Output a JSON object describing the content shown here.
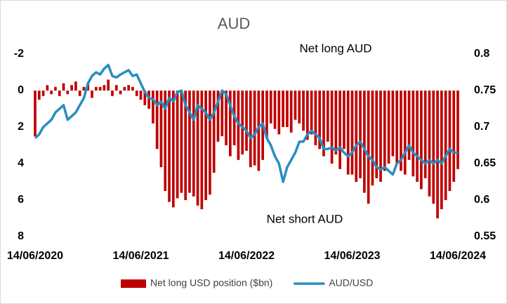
{
  "chart_data": {
    "type": "bar-line",
    "title": "AUD",
    "annotations": [
      "Net long AUD",
      "Net short AUD"
    ],
    "categories": [
      "14/06/2020",
      null,
      null,
      null,
      null,
      null,
      null,
      null,
      null,
      null,
      null,
      null,
      null,
      null,
      null,
      null,
      null,
      null,
      null,
      null,
      null,
      null,
      null,
      null,
      null,
      null,
      "14/06/2021",
      null,
      null,
      null,
      null,
      null,
      null,
      null,
      null,
      null,
      null,
      null,
      null,
      null,
      null,
      null,
      null,
      null,
      null,
      null,
      null,
      null,
      null,
      null,
      null,
      null,
      "14/06/2022",
      null,
      null,
      null,
      null,
      null,
      null,
      null,
      null,
      null,
      null,
      null,
      null,
      null,
      null,
      null,
      null,
      null,
      null,
      null,
      null,
      null,
      null,
      null,
      null,
      null,
      "14/06/2023",
      null,
      null,
      null,
      null,
      null,
      null,
      null,
      null,
      null,
      null,
      null,
      null,
      null,
      null,
      null,
      null,
      null,
      null,
      null,
      null,
      null,
      null,
      null,
      null,
      null,
      "14/06/2024"
    ],
    "series": [
      {
        "name": "Net long USD position ($bn)",
        "type": "bar",
        "color": "#c00000",
        "axis": "y",
        "values": [
          2.5,
          0.5,
          0.3,
          -0.3,
          0.2,
          -0.2,
          0.3,
          -0.4,
          0.2,
          -0.3,
          -0.5,
          0.3,
          -0.2,
          -0.4,
          0.4,
          -0.2,
          -0.2,
          -0.3,
          -0.6,
          0.3,
          -0.3,
          0.2,
          -0.2,
          -0.3,
          -0.2,
          0.3,
          0.5,
          0.8,
          1.0,
          1.8,
          3.2,
          4.2,
          5.5,
          6.1,
          6.4,
          5.9,
          5.6,
          6.0,
          5.6,
          5.8,
          6.3,
          6.5,
          6.0,
          5.7,
          4.5,
          2.8,
          2.5,
          3.0,
          3.6,
          3.0,
          3.8,
          3.5,
          3.3,
          4.2,
          4.1,
          4.4,
          3.8,
          2.6,
          1.8,
          2.1,
          2.4,
          2.0,
          2.0,
          2.3,
          1.6,
          1.8,
          2.2,
          2.7,
          2.4,
          3.0,
          3.2,
          3.6,
          2.8,
          4.0,
          3.5,
          4.3,
          3.2,
          4.6,
          4.6,
          5.0,
          4.8,
          5.6,
          6.2,
          5.2,
          4.8,
          5.0,
          4.4,
          4.0,
          3.6,
          4.0,
          4.4,
          4.6,
          3.8,
          4.7,
          5.0,
          5.4,
          4.8,
          5.8,
          6.2,
          7.0,
          6.5,
          6.0,
          5.5,
          5.0,
          4.3
        ]
      },
      {
        "name": "AUD/USD",
        "type": "line",
        "color": "#2a8dc0",
        "axis": "y2",
        "values": [
          0.685,
          0.69,
          0.7,
          0.705,
          0.71,
          0.72,
          0.725,
          0.73,
          0.71,
          0.715,
          0.72,
          0.73,
          0.74,
          0.76,
          0.77,
          0.775,
          0.772,
          0.78,
          0.785,
          0.77,
          0.768,
          0.772,
          0.775,
          0.778,
          0.77,
          0.772,
          0.76,
          0.748,
          0.74,
          0.738,
          0.73,
          0.735,
          0.725,
          0.74,
          0.735,
          0.748,
          0.75,
          0.73,
          0.72,
          0.71,
          0.73,
          0.725,
          0.72,
          0.71,
          0.72,
          0.735,
          0.75,
          0.745,
          0.73,
          0.715,
          0.705,
          0.7,
          0.695,
          0.685,
          0.69,
          0.7,
          0.705,
          0.685,
          0.675,
          0.66,
          0.65,
          0.625,
          0.645,
          0.655,
          0.665,
          0.68,
          0.68,
          0.69,
          0.695,
          0.69,
          0.685,
          0.67,
          0.67,
          0.672,
          0.668,
          0.672,
          0.665,
          0.66,
          0.665,
          0.675,
          0.68,
          0.67,
          0.66,
          0.655,
          0.645,
          0.642,
          0.645,
          0.64,
          0.635,
          0.65,
          0.655,
          0.665,
          0.675,
          0.665,
          0.66,
          0.655,
          0.65,
          0.655,
          0.65,
          0.655,
          0.65,
          0.66,
          0.67,
          0.665,
          0.665
        ]
      }
    ],
    "ylim": [
      -2,
      8
    ],
    "y_inverted": true,
    "yticks": [
      -2,
      0,
      2,
      4,
      6,
      8
    ],
    "y2lim": [
      0.55,
      0.8
    ],
    "y2ticks": [
      0.55,
      0.6,
      0.65,
      0.7,
      0.75,
      0.8
    ],
    "legend": "bottom"
  }
}
